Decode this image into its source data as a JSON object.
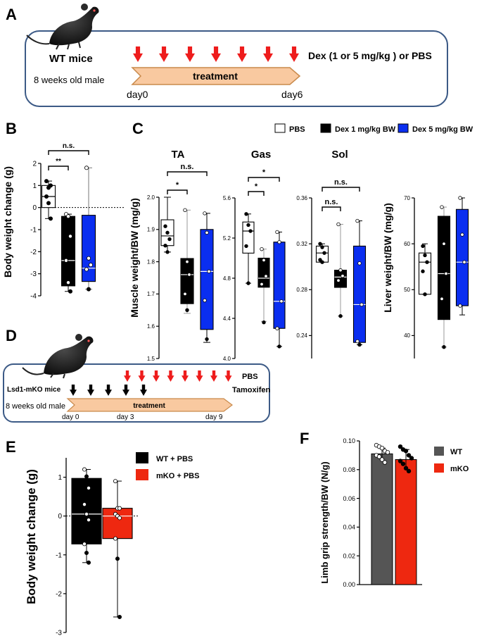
{
  "panelA": {
    "letter": "A",
    "mice_label": "WT mice",
    "age_label": "8 weeks old male",
    "treatment_label": "treatment",
    "day_start": "day0",
    "day_end": "day6",
    "dose_label": "Dex (1 or 5 mg/kg ) or PBS",
    "arrow_count": 7
  },
  "panelB": {
    "letter": "B"
  },
  "panelC": {
    "letter": "C",
    "legend": [
      "PBS",
      "Dex 1 mg/kg BW",
      "Dex 5 mg/kg BW"
    ]
  },
  "panelD": {
    "letter": "D",
    "mice_label": "Lsd1-mKO mice",
    "age_label": "8 weeks old male",
    "treatment_label": "treatment",
    "day_start": "day 0",
    "day_mid": "day 3",
    "day_end": "day 9",
    "pbs_label": "PBS",
    "tamoxifen_label": "Tamoxifen",
    "pbs_arrow_count": 8,
    "tamoxifen_arrow_count": 5
  },
  "panelE": {
    "letter": "E",
    "legend": [
      "WT + PBS",
      "mKO + PBS"
    ]
  },
  "panelF": {
    "letter": "F",
    "legend": [
      "WT",
      "mKO"
    ]
  },
  "colors": {
    "pbs_fill": "#ffffff",
    "dex1_fill": "#000000",
    "dex5_fill": "#0a2ef0",
    "wt_box": "#000000",
    "mko_box": "#ee2810",
    "wt_bar": "#555555",
    "mko_bar": "#ee2810",
    "arrow_red": "#ee1c1c",
    "treatment_fill": "#f9c9a0",
    "treatment_stroke": "#c98a4c",
    "frame_stroke": "#3c5a86"
  },
  "chart_data": [
    {
      "id": "B",
      "type": "box",
      "title": "",
      "xlabel": "",
      "ylabel": "Body weight change (g)",
      "ylim": [
        -4,
        2
      ],
      "yticks": [
        "-4",
        "-3",
        "-2",
        "-1",
        "0",
        "1",
        "2"
      ],
      "reference_line": 0,
      "groups": [
        "PBS",
        "Dex 1 mg/kg BW",
        "Dex 5 mg/kg BW"
      ],
      "boxes": [
        {
          "min": -0.5,
          "q1": 0.0,
          "median": 0.5,
          "q3": 1.0,
          "max": 1.2,
          "points": [
            1.2,
            0.9,
            1.0,
            0.5,
            0.2,
            -0.5
          ]
        },
        {
          "min": -3.8,
          "q1": -3.55,
          "median": -2.4,
          "q3": -0.4,
          "max": -0.3,
          "points": [
            -0.3,
            -0.4,
            -1.3,
            -2.4,
            -3.4,
            -3.8
          ]
        },
        {
          "min": -3.7,
          "q1": -3.35,
          "median": -2.75,
          "q3": -0.35,
          "max": 1.8,
          "points": [
            1.8,
            -2.3,
            -2.6,
            -2.8,
            -3.7
          ]
        }
      ],
      "annotations": [
        {
          "between": [
            "PBS",
            "Dex 1 mg/kg BW"
          ],
          "label": "**"
        },
        {
          "between": [
            "PBS",
            "Dex 5 mg/kg BW"
          ],
          "label": "n.s."
        }
      ]
    },
    {
      "id": "C-TA",
      "type": "box",
      "title": "TA",
      "xlabel": "",
      "ylabel": "Muscle weight/BW (mg/g)",
      "ylim": [
        1.5,
        2.0
      ],
      "yticks": [
        "1.5",
        "1.6",
        "1.7",
        "1.8",
        "1.9",
        "2.0"
      ],
      "groups": [
        "PBS",
        "Dex 1 mg/kg BW",
        "Dex 5 mg/kg BW"
      ],
      "boxes": [
        {
          "min": 1.83,
          "q1": 1.85,
          "median": 1.88,
          "q3": 1.93,
          "max": 2.0,
          "points": [
            1.91,
            1.89,
            1.87,
            1.85,
            1.83
          ]
        },
        {
          "min": 1.64,
          "q1": 1.67,
          "median": 1.76,
          "q3": 1.81,
          "max": 1.96,
          "points": [
            1.96,
            1.8,
            1.76,
            1.7,
            1.65
          ]
        },
        {
          "min": 1.55,
          "q1": 1.59,
          "median": 1.77,
          "q3": 1.9,
          "max": 1.95,
          "points": [
            1.95,
            1.89,
            1.77,
            1.68,
            1.56
          ]
        }
      ],
      "annotations": [
        {
          "between": [
            "PBS",
            "Dex 1 mg/kg BW"
          ],
          "label": "*"
        },
        {
          "between": [
            "PBS",
            "Dex 5 mg/kg BW"
          ],
          "label": "n.s."
        }
      ]
    },
    {
      "id": "C-Gas",
      "type": "box",
      "title": "Gas",
      "xlabel": "",
      "ylabel": "",
      "ylim": [
        4.0,
        5.6
      ],
      "yticks": [
        "4.0",
        "4.4",
        "4.8",
        "5.2",
        "5.6"
      ],
      "groups": [
        "PBS",
        "Dex 1 mg/kg BW",
        "Dex 5 mg/kg BW"
      ],
      "boxes": [
        {
          "min": 4.75,
          "q1": 5.05,
          "median": 5.27,
          "q3": 5.36,
          "max": 5.44,
          "points": [
            5.44,
            5.33,
            5.27,
            5.12,
            4.75
          ]
        },
        {
          "min": 4.37,
          "q1": 4.71,
          "median": 4.8,
          "q3": 5.0,
          "max": 5.09,
          "points": [
            5.09,
            4.98,
            4.82,
            4.74,
            4.36
          ]
        },
        {
          "min": 4.12,
          "q1": 4.3,
          "median": 4.57,
          "q3": 5.16,
          "max": 5.26,
          "points": [
            5.26,
            5.16,
            4.57,
            4.3,
            4.12
          ]
        }
      ],
      "annotations": [
        {
          "between": [
            "PBS",
            "Dex 1 mg/kg BW"
          ],
          "label": "*"
        },
        {
          "between": [
            "PBS",
            "Dex 5 mg/kg BW"
          ],
          "label": "*"
        }
      ]
    },
    {
      "id": "C-Sol",
      "type": "box",
      "title": "Sol",
      "xlabel": "",
      "ylabel": "",
      "ylim": [
        0.22,
        0.36
      ],
      "yticks": [
        "0.24",
        "0.28",
        "0.32",
        "0.36"
      ],
      "groups": [
        "PBS",
        "Dex 1 mg/kg BW",
        "Dex 5 mg/kg BW"
      ],
      "boxes": [
        {
          "min": 0.304,
          "q1": 0.304,
          "median": 0.312,
          "q3": 0.318,
          "max": 0.32,
          "points": [
            0.32,
            0.317,
            0.312,
            0.306,
            0.304
          ]
        },
        {
          "min": 0.257,
          "q1": 0.282,
          "median": 0.291,
          "q3": 0.297,
          "max": 0.337,
          "points": [
            0.337,
            0.297,
            0.292,
            0.288,
            0.257
          ]
        },
        {
          "min": 0.232,
          "q1": 0.234,
          "median": 0.267,
          "q3": 0.318,
          "max": 0.34,
          "points": [
            0.34,
            0.303,
            0.267,
            0.235,
            0.232
          ]
        }
      ],
      "annotations": [
        {
          "between": [
            "PBS",
            "Dex 1 mg/kg BW"
          ],
          "label": "n.s."
        },
        {
          "between": [
            "PBS",
            "Dex 5 mg/kg BW"
          ],
          "label": "n.s."
        }
      ]
    },
    {
      "id": "C-Liver",
      "type": "box",
      "title": "",
      "xlabel": "",
      "ylabel": "Liver weight/BW (mg/g)",
      "ylim": [
        35,
        70
      ],
      "yticks": [
        "40",
        "50",
        "60",
        "70"
      ],
      "groups": [
        "PBS",
        "Dex 1 mg/kg BW",
        "Dex 5 mg/kg BW"
      ],
      "boxes": [
        {
          "min": 49,
          "q1": 49,
          "median": 56,
          "q3": 58,
          "max": 60,
          "points": [
            59.5,
            57.5,
            56,
            54,
            49
          ]
        },
        {
          "min": 37.5,
          "q1": 43.5,
          "median": 53.5,
          "q3": 66,
          "max": 68,
          "points": [
            68,
            60,
            53.5,
            48,
            37.5
          ]
        },
        {
          "min": 44.5,
          "q1": 46.5,
          "median": 56,
          "q3": 67.5,
          "max": 70,
          "points": [
            70,
            62,
            56,
            46.5
          ]
        }
      ],
      "annotations": []
    },
    {
      "id": "E",
      "type": "box",
      "title": "",
      "xlabel": "",
      "ylabel": "Body weight change (g)",
      "ylim": [
        -3,
        1.5
      ],
      "yticks": [
        "-3",
        "-2",
        "-1",
        "0",
        "1"
      ],
      "reference_line": 0,
      "groups": [
        "WT + PBS",
        "mKO + PBS"
      ],
      "boxes": [
        {
          "min": -1.2,
          "q1": -0.72,
          "median": 0.05,
          "q3": 0.97,
          "max": 1.2,
          "points": [
            1.2,
            1.02,
            0.72,
            0.3,
            0.05,
            -0.1,
            -0.72,
            -0.95,
            -1.2
          ]
        },
        {
          "min": -2.6,
          "q1": -0.58,
          "median": 0.0,
          "q3": 0.2,
          "max": 0.9,
          "points": [
            0.9,
            0.2,
            0.2,
            0.05,
            0.0,
            -0.05,
            -0.58,
            -1.1,
            -2.6
          ]
        }
      ],
      "annotations": []
    },
    {
      "id": "F",
      "type": "bar",
      "title": "",
      "xlabel": "",
      "ylabel": "Limb grip strength/BW (N/g)",
      "ylim": [
        0,
        0.1
      ],
      "yticks": [
        "0.00",
        "0.02",
        "0.04",
        "0.06",
        "0.08",
        "0.10"
      ],
      "categories": [
        "WT",
        "mKO"
      ],
      "values": [
        0.091,
        0.087
      ],
      "errors": [
        0.004,
        0.007
      ],
      "points": [
        [
          0.097,
          0.096,
          0.095,
          0.093,
          0.092,
          0.09,
          0.089,
          0.087,
          0.085
        ],
        [
          0.096,
          0.094,
          0.093,
          0.09,
          0.088,
          0.086,
          0.084,
          0.081,
          0.079
        ]
      ]
    }
  ]
}
